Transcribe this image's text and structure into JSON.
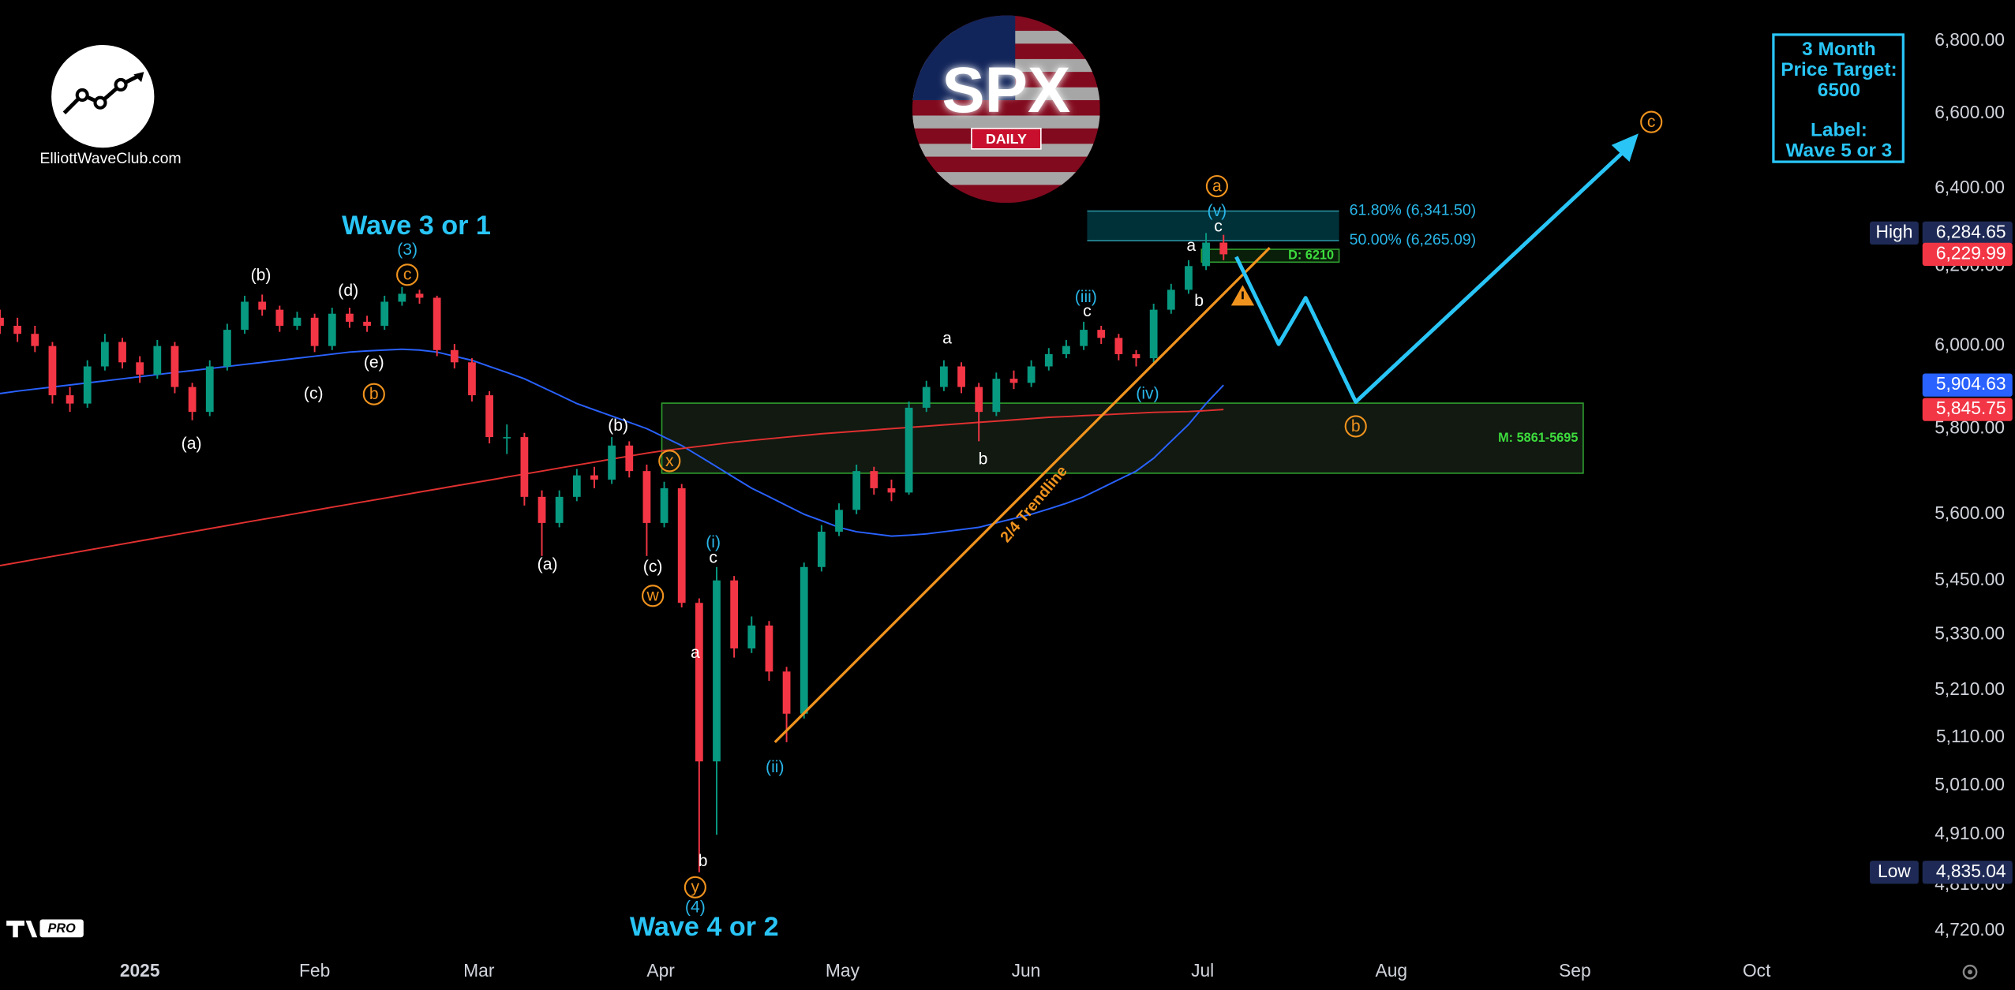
{
  "chart_data": {
    "type": "candlestick",
    "log_scale": true,
    "grid": false,
    "up_color": "#089981",
    "down_color": "#f23645",
    "ylim": [
      4678,
      6915
    ],
    "yticks": [
      {
        "value": 6800,
        "label": "6,800.00"
      },
      {
        "value": 6600,
        "label": "6,600.00"
      },
      {
        "value": 6400,
        "label": "6,400.00"
      },
      {
        "value": 6200,
        "label": "6,200.00"
      },
      {
        "value": 6000,
        "label": "6,000.00"
      },
      {
        "value": 5800,
        "label": "5,800.00"
      },
      {
        "value": 5600,
        "label": "5,600.00"
      },
      {
        "value": 5450,
        "label": "5,450.00"
      },
      {
        "value": 5330,
        "label": "5,330.00"
      },
      {
        "value": 5210,
        "label": "5,210.00"
      },
      {
        "value": 5110,
        "label": "5,110.00"
      },
      {
        "value": 5010,
        "label": "5,010.00"
      },
      {
        "value": 4910,
        "label": "4,910.00"
      },
      {
        "value": 4810,
        "label": "4,810.00"
      },
      {
        "value": 4720,
        "label": "4,720.00"
      }
    ],
    "xlim": [
      0,
      110.5
    ],
    "xticks": [
      {
        "value": 8,
        "label": "2025"
      },
      {
        "value": 18,
        "label": "Feb"
      },
      {
        "value": 27.4,
        "label": "Mar"
      },
      {
        "value": 37.8,
        "label": "Apr"
      },
      {
        "value": 48.2,
        "label": "May"
      },
      {
        "value": 58.7,
        "label": "Jun"
      },
      {
        "value": 68.8,
        "label": "Jul"
      },
      {
        "value": 79.6,
        "label": "Aug"
      },
      {
        "value": 90.1,
        "label": "Sep"
      },
      {
        "value": 100.5,
        "label": "Oct"
      }
    ],
    "candles": [
      [
        6070,
        6090,
        6030,
        6050
      ],
      [
        6050,
        6070,
        6010,
        6030
      ],
      [
        6030,
        6050,
        5985,
        6000
      ],
      [
        6000,
        6010,
        5860,
        5880
      ],
      [
        5880,
        5900,
        5840,
        5860
      ],
      [
        5860,
        5965,
        5850,
        5950
      ],
      [
        5950,
        6030,
        5940,
        6010
      ],
      [
        6010,
        6020,
        5945,
        5960
      ],
      [
        5960,
        5975,
        5910,
        5930
      ],
      [
        5930,
        6015,
        5920,
        6000
      ],
      [
        6000,
        6010,
        5885,
        5900
      ],
      [
        5900,
        5910,
        5820,
        5840
      ],
      [
        5840,
        5965,
        5830,
        5950
      ],
      [
        5950,
        6055,
        5940,
        6040
      ],
      [
        6040,
        6125,
        6030,
        6110
      ],
      [
        6110,
        6128,
        6075,
        6090
      ],
      [
        6090,
        6100,
        6035,
        6050
      ],
      [
        6050,
        6085,
        6040,
        6070
      ],
      [
        6070,
        6080,
        5985,
        6000
      ],
      [
        6000,
        6095,
        5990,
        6080
      ],
      [
        6080,
        6095,
        6045,
        6060
      ],
      [
        6060,
        6075,
        6035,
        6050
      ],
      [
        6050,
        6125,
        6040,
        6110
      ],
      [
        6110,
        6147,
        6100,
        6130
      ],
      [
        6130,
        6140,
        6105,
        6120
      ],
      [
        6120,
        6125,
        5975,
        5990
      ],
      [
        5990,
        6005,
        5945,
        5960
      ],
      [
        5960,
        5970,
        5865,
        5880
      ],
      [
        5880,
        5890,
        5765,
        5780
      ],
      [
        5780,
        5810,
        5740,
        5780
      ],
      [
        5780,
        5790,
        5620,
        5640
      ],
      [
        5640,
        5655,
        5505,
        5580
      ],
      [
        5580,
        5655,
        5570,
        5640
      ],
      [
        5640,
        5705,
        5630,
        5690
      ],
      [
        5690,
        5710,
        5660,
        5680
      ],
      [
        5680,
        5780,
        5670,
        5760
      ],
      [
        5760,
        5770,
        5685,
        5700
      ],
      [
        5700,
        5715,
        5505,
        5580
      ],
      [
        5580,
        5675,
        5570,
        5660
      ],
      [
        5660,
        5670,
        5390,
        5400
      ],
      [
        5400,
        5410,
        4835,
        5060
      ],
      [
        5060,
        5480,
        4910,
        5450
      ],
      [
        5450,
        5460,
        5280,
        5300
      ],
      [
        5300,
        5370,
        5290,
        5350
      ],
      [
        5350,
        5360,
        5230,
        5250
      ],
      [
        5250,
        5260,
        5100,
        5160
      ],
      [
        5160,
        5490,
        5150,
        5480
      ],
      [
        5480,
        5575,
        5470,
        5560
      ],
      [
        5560,
        5625,
        5550,
        5610
      ],
      [
        5610,
        5715,
        5600,
        5700
      ],
      [
        5700,
        5710,
        5645,
        5660
      ],
      [
        5660,
        5680,
        5630,
        5650
      ],
      [
        5650,
        5865,
        5645,
        5850
      ],
      [
        5850,
        5915,
        5840,
        5900
      ],
      [
        5900,
        5965,
        5890,
        5950
      ],
      [
        5950,
        5960,
        5885,
        5900
      ],
      [
        5900,
        5910,
        5770,
        5840
      ],
      [
        5840,
        5935,
        5830,
        5920
      ],
      [
        5920,
        5940,
        5895,
        5910
      ],
      [
        5910,
        5965,
        5900,
        5950
      ],
      [
        5950,
        5995,
        5940,
        5980
      ],
      [
        5980,
        6015,
        5970,
        6000
      ],
      [
        6000,
        6060,
        5990,
        6040
      ],
      [
        6040,
        6050,
        6005,
        6020
      ],
      [
        6020,
        6030,
        5965,
        5980
      ],
      [
        5980,
        5990,
        5950,
        5970
      ],
      [
        5970,
        6105,
        5960,
        6090
      ],
      [
        6090,
        6155,
        6080,
        6140
      ],
      [
        6140,
        6215,
        6130,
        6200
      ],
      [
        6200,
        6284.65,
        6190,
        6260
      ],
      [
        6260,
        6280,
        6215,
        6229.99
      ]
    ],
    "ma": [
      {
        "color": "#2962ff",
        "values": [
          5884,
          5890,
          5895,
          5900,
          5905,
          5910,
          5915,
          5920,
          5925,
          5930,
          5935,
          5940,
          5945,
          5950,
          5955,
          5960,
          5965,
          5970,
          5975,
          5980,
          5985,
          5988,
          5990,
          5992,
          5990,
          5985,
          5975,
          5965,
          5950,
          5935,
          5920,
          5900,
          5880,
          5860,
          5845,
          5830,
          5815,
          5800,
          5780,
          5760,
          5735,
          5710,
          5685,
          5660,
          5640,
          5620,
          5600,
          5585,
          5570,
          5560,
          5555,
          5550,
          5552,
          5555,
          5560,
          5565,
          5570,
          5580,
          5590,
          5600,
          5612,
          5625,
          5640,
          5660,
          5680,
          5700,
          5730,
          5770,
          5810,
          5860,
          5904.63
        ]
      },
      {
        "color": "#e03030",
        "values": [
          5483,
          5490,
          5497,
          5504,
          5511,
          5518,
          5525,
          5532,
          5539,
          5546,
          5553,
          5560,
          5567,
          5574,
          5581,
          5588,
          5595,
          5602,
          5609,
          5616,
          5623,
          5630,
          5637,
          5644,
          5651,
          5658,
          5665,
          5672,
          5679,
          5686,
          5693,
          5700,
          5707,
          5714,
          5721,
          5728,
          5735,
          5742,
          5748,
          5753,
          5758,
          5763,
          5768,
          5772,
          5776,
          5780,
          5784,
          5788,
          5791,
          5794,
          5797,
          5800,
          5803,
          5806,
          5809,
          5812,
          5815,
          5818,
          5821,
          5824,
          5827,
          5829,
          5831,
          5833,
          5835,
          5837,
          5839,
          5840,
          5841,
          5843,
          5845.75
        ]
      }
    ],
    "price_labels": [
      {
        "value": 6284.65,
        "label": "6,284.65",
        "name": "High",
        "color": "#1e2a55"
      },
      {
        "value": 6229.99,
        "label": "6,229.99",
        "color": "#f23645"
      },
      {
        "value": 5904.63,
        "label": "5,904.63",
        "color": "#2962ff"
      },
      {
        "value": 5845.75,
        "label": "5,845.75",
        "color": "#f23645"
      },
      {
        "value": 4835.04,
        "label": "4,835.04",
        "name": "Low",
        "color": "#1e2a55"
      }
    ],
    "fib": [
      {
        "value": 6341.5,
        "label": "61.80% (6,341.50)"
      },
      {
        "value": 6265.09,
        "label": "50.00% (6,265.09)"
      }
    ],
    "d_level": {
      "value": 6210,
      "label": "D: 6210"
    },
    "m_zone": {
      "high": 5861,
      "low": 5695,
      "label": "M: 5861-5695"
    },
    "trendline_label": "2/4 Trendline",
    "wave_labels": {
      "white": [
        "(b)",
        "(d)",
        "(c)",
        "(e)",
        "(a)",
        "(a)",
        "(b)",
        "(c)",
        "a",
        "c",
        "b",
        "a",
        "b",
        "c",
        "a",
        "b",
        "c"
      ],
      "cyan": [
        "(3)",
        "(4)",
        "(i)",
        "(ii)",
        "(iii)",
        "(iv)",
        "(v)"
      ],
      "headline": [
        "Wave 3 or 1",
        "Wave 4 or 2"
      ],
      "circled": [
        "c",
        "b",
        "x",
        "w",
        "y",
        "a",
        "b",
        "c"
      ]
    },
    "label_colors": {
      "white": "#ffffff",
      "cyan": "#29b6e8",
      "headline": "#29c5f6",
      "circled": "#f0931e"
    },
    "target": [
      "3 Month",
      "Price Target:",
      "6500"
    ],
    "target_label": [
      "Label:",
      "Wave 5 or 3"
    ],
    "logo_text": "ElliottWaveClub.com",
    "spx_logo": {
      "title": "SPX",
      "subtitle": "DAILY"
    },
    "platform_badge": "PRO"
  }
}
